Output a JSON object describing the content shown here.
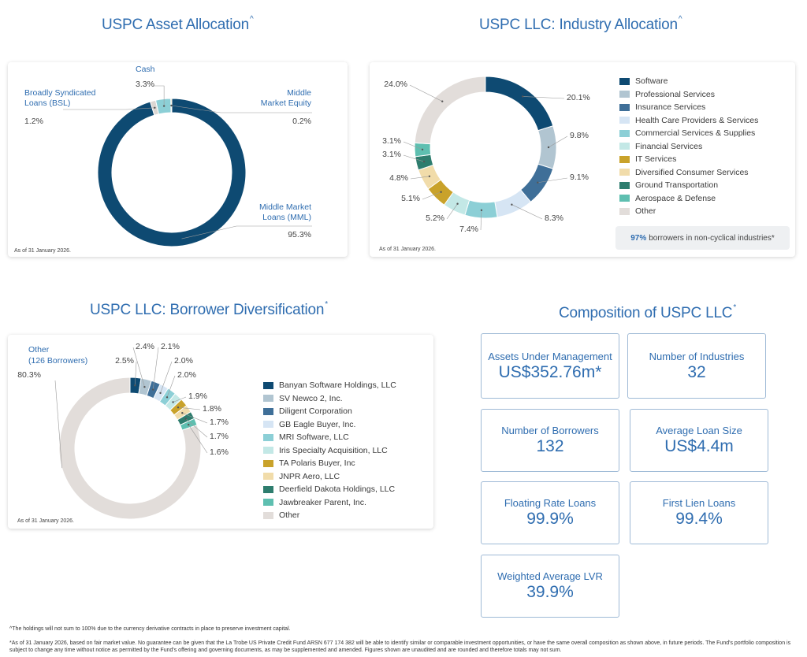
{
  "asset_allocation": {
    "title": "USPC Asset Allocation",
    "title_mark": "^",
    "as_of": "As of 31 January 2026.",
    "labels": {
      "cash_name": "Cash",
      "cash_value": "3.3%",
      "bsl_name_1": "Broadly Syndicated",
      "bsl_name_2": "Loans (BSL)",
      "bsl_value": "1.2%",
      "mme_name_1": "Middle",
      "mme_name_2": "Market Equity",
      "mme_value": "0.2%",
      "mml_name_1": "Middle Market",
      "mml_name_2": "Loans (MML)",
      "mml_value": "95.3%"
    }
  },
  "industry_allocation": {
    "title": "USPC LLC: Industry Allocation",
    "title_mark": "^",
    "as_of": "As of 31 January 2026.",
    "legend": [
      "Software",
      "Professional Services",
      "Insurance Services",
      "Health Care Providers & Services",
      "Commercial Services & Supplies",
      "Financial Services",
      "IT Services",
      "Diversified Consumer Services",
      "Ground Transportation",
      "Aerospace & Defense",
      "Other"
    ],
    "value_labels": [
      "20.1%",
      "9.8%",
      "9.1%",
      "8.3%",
      "7.4%",
      "5.2%",
      "5.1%",
      "4.8%",
      "3.1%",
      "3.1%",
      "24.0%"
    ],
    "note_strong": "97%",
    "note_text": "borrowers in non-cyclical industries*"
  },
  "borrower_diversification": {
    "title": "USPC LLC: Borrower Diversification",
    "title_mark": "*",
    "as_of": "As of 31 January 2026.",
    "other_label_1": "Other",
    "other_label_2": "(126 Borrowers)",
    "legend": [
      "Banyan Software Holdings, LLC",
      "SV Newco 2, Inc.",
      "Diligent Corporation",
      "GB Eagle Buyer, Inc.",
      "MRI Software, LLC",
      "Iris Specialty Acquisition, LLC",
      "TA Polaris Buyer, Inc",
      "JNPR Aero, LLC",
      "Deerfield Dakota Holdings, LLC",
      "Jawbreaker Parent, Inc.",
      "Other"
    ],
    "value_labels": [
      "2.5%",
      "2.4%",
      "2.1%",
      "2.0%",
      "2.0%",
      "1.9%",
      "1.8%",
      "1.7%",
      "1.7%",
      "1.6%",
      "80.3%"
    ]
  },
  "composition": {
    "title": "Composition of USPC LLC",
    "title_mark": "*",
    "metrics": [
      {
        "label": "Assets Under Management",
        "value": "US$352.76m*"
      },
      {
        "label": "Number of Industries",
        "value": "32"
      },
      {
        "label": "Number of Borrowers",
        "value": "132"
      },
      {
        "label": "Average Loan Size",
        "value": "US$4.4m"
      },
      {
        "label": "Floating Rate Loans",
        "value": "99.9%"
      },
      {
        "label": "First Lien Loans",
        "value": "99.4%"
      },
      {
        "label": "Weighted Average LVR",
        "value": "39.9%"
      }
    ]
  },
  "footnotes": {
    "line1": "^The holdings will not sum to 100% due to the currency derivative contracts in place to preserve investment capital.",
    "line2": "*As of 31 January 2026, based on fair market value. No guarantee can be given that the La Trobe US Private Credit Fund ARSN 677 174 382 will be able to identify similar or comparable investment opportunities, or have the same overall composition as shown above, in future periods. The Fund's portfolio composition is subject to change any time without notice as permitted by the Fund's offering and governing documents, as may be supplemented and amended. Figures shown are unaudited and are rounded and therefore totals may not sum."
  },
  "chart_data": [
    {
      "type": "pie",
      "title": "USPC Asset Allocation",
      "categories": [
        "Middle Market Loans (MML)",
        "Broadly Syndicated Loans (BSL)",
        "Cash",
        "Middle Market Equity"
      ],
      "values": [
        95.3,
        1.2,
        3.3,
        0.2
      ],
      "colors": [
        "#0e4a72",
        "#dcd7d3",
        "#8ccfd6",
        "#c9a22a"
      ],
      "legend": "none"
    },
    {
      "type": "pie",
      "title": "USPC LLC: Industry Allocation",
      "categories": [
        "Software",
        "Professional Services",
        "Insurance Services",
        "Health Care Providers & Services",
        "Commercial Services & Supplies",
        "Financial Services",
        "IT Services",
        "Diversified Consumer Services",
        "Ground Transportation",
        "Aerospace & Defense",
        "Other"
      ],
      "values": [
        20.1,
        9.8,
        9.1,
        8.3,
        7.4,
        5.2,
        5.1,
        4.8,
        3.1,
        3.1,
        24.0
      ],
      "colors": [
        "#0e4a72",
        "#b1c5d1",
        "#3f6f98",
        "#d6e5f4",
        "#8ccfd6",
        "#c3e8e6",
        "#c9a22a",
        "#f1dcaa",
        "#2e7d6e",
        "#5ebfb0",
        "#e2ddda"
      ],
      "legend": "right"
    },
    {
      "type": "pie",
      "title": "USPC LLC: Borrower Diversification",
      "categories": [
        "Banyan Software Holdings, LLC",
        "SV Newco 2, Inc.",
        "Diligent Corporation",
        "GB Eagle Buyer, Inc.",
        "MRI Software, LLC",
        "Iris Specialty Acquisition, LLC",
        "TA Polaris Buyer, Inc",
        "JNPR Aero, LLC",
        "Deerfield Dakota Holdings, LLC",
        "Jawbreaker Parent, Inc.",
        "Other"
      ],
      "values": [
        2.5,
        2.4,
        2.1,
        2.0,
        2.0,
        1.9,
        1.8,
        1.7,
        1.7,
        1.6,
        80.3
      ],
      "colors": [
        "#0e4a72",
        "#b1c5d1",
        "#3f6f98",
        "#d6e5f4",
        "#8ccfd6",
        "#c3e8e6",
        "#c9a22a",
        "#f1dcaa",
        "#2e7d6e",
        "#5ebfb0",
        "#e2ddda"
      ],
      "legend": "right"
    }
  ]
}
